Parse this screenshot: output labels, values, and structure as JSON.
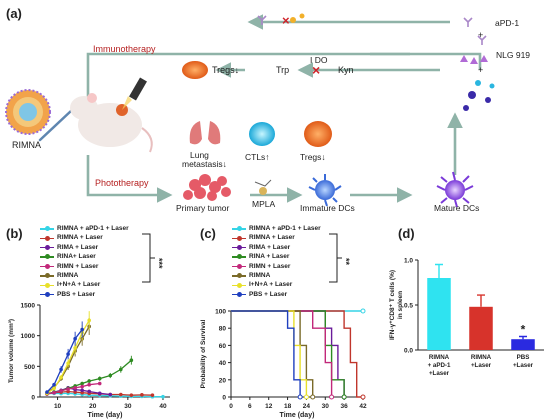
{
  "panel_a": {
    "letter": "(a)",
    "labels": {
      "immunotherapy": "Immunotherapy",
      "phototherapy": "Phototherapy",
      "rimna": "RIMNA",
      "apd1": "aPD-1",
      "plus1": "+",
      "nlg": "NLG 919",
      "plus2": "+",
      "tregs_down": "Tregs↓",
      "trp": "Trp",
      "ido": "I DO",
      "kyn": "Kyn",
      "lung": "Lung",
      "metastasis": "metastasis↓",
      "ctls": "CTLs↑",
      "tregs2": "Tregs↓",
      "primary_tumor": "Primary tumor",
      "mpla": "MPLA",
      "immature_dcs": "Immature DCs",
      "mature_dcs": "Mature DCs"
    },
    "colors": {
      "arrow": "#8fb3a8",
      "red": "#b51f1f"
    }
  },
  "chart_data": [
    {
      "panel": "(b)",
      "type": "line",
      "ylabel": "Tumor volume (mm³)",
      "xlabel": "Time (day)",
      "xlim": [
        5,
        42
      ],
      "ylim": [
        0,
        1500
      ],
      "xticks": [
        10,
        20,
        30,
        40
      ],
      "yticks": [
        0,
        500,
        1000,
        1500
      ],
      "significance": "***",
      "series": [
        {
          "name": "RIMNA + aPD-1 + Laser",
          "color": "#35d4e6",
          "x": [
            7,
            9,
            11,
            13,
            15,
            17,
            19,
            22,
            25,
            28,
            31,
            34,
            37,
            40
          ],
          "y": [
            50,
            60,
            55,
            60,
            50,
            40,
            30,
            25,
            20,
            15,
            10,
            10,
            5,
            5
          ]
        },
        {
          "name": "RIMNA + Laser",
          "color": "#c0362c",
          "x": [
            7,
            9,
            11,
            13,
            15,
            17,
            19,
            22,
            25,
            28,
            31,
            34,
            37
          ],
          "y": [
            50,
            70,
            80,
            90,
            80,
            70,
            60,
            50,
            40,
            40,
            30,
            35,
            30
          ]
        },
        {
          "name": "RIMA + Laser",
          "color": "#6a1b9a",
          "x": [
            7,
            9,
            11,
            13,
            15,
            17,
            19,
            22,
            25
          ],
          "y": [
            50,
            80,
            110,
            150,
            120,
            110,
            90,
            60,
            40
          ]
        },
        {
          "name": "RINA+ Laser",
          "color": "#2e8b22",
          "x": [
            7,
            9,
            11,
            13,
            15,
            17,
            19,
            22,
            25,
            28,
            31
          ],
          "y": [
            50,
            80,
            100,
            140,
            180,
            220,
            260,
            300,
            350,
            450,
            600
          ]
        },
        {
          "name": "RIMN + Laser",
          "color": "#c2287a",
          "x": [
            7,
            9,
            11,
            13,
            15,
            17,
            19,
            22
          ],
          "y": [
            50,
            70,
            100,
            130,
            150,
            170,
            200,
            220
          ]
        },
        {
          "name": "RIMNA",
          "color": "#7a6a28",
          "x": [
            7,
            9,
            11,
            13,
            15,
            17,
            19
          ],
          "y": [
            70,
            150,
            300,
            500,
            750,
            950,
            1150
          ]
        },
        {
          "name": "I+N+A + Laser",
          "color": "#e8e02a",
          "x": [
            7,
            9,
            11,
            13,
            15,
            17,
            19
          ],
          "y": [
            60,
            140,
            320,
            550,
            800,
            1050,
            1250
          ]
        },
        {
          "name": "PBS + Laser",
          "color": "#1f3fbf",
          "x": [
            7,
            9,
            11,
            13,
            15,
            17
          ],
          "y": [
            80,
            200,
            450,
            700,
            950,
            1100
          ]
        }
      ]
    },
    {
      "panel": "(c)",
      "type": "line",
      "ylabel": "Probability of Survival",
      "xlabel": "Time (day)",
      "xlim": [
        0,
        42
      ],
      "ylim": [
        0,
        100
      ],
      "xticks": [
        0,
        6,
        12,
        18,
        24,
        30,
        36,
        42
      ],
      "yticks": [
        0,
        20,
        40,
        60,
        80,
        100
      ],
      "significance": "**",
      "series": [
        {
          "name": "RIMNA + aPD-1 + Laser",
          "color": "#35d4e6",
          "x": [
            0,
            42
          ],
          "y": [
            100,
            100
          ]
        },
        {
          "name": "RIMNA + Laser",
          "color": "#c0362c",
          "x": [
            0,
            36,
            36,
            38,
            38,
            40,
            40,
            42
          ],
          "y": [
            100,
            100,
            80,
            80,
            40,
            40,
            0,
            0
          ]
        },
        {
          "name": "RIMA + Laser",
          "color": "#6a1b9a",
          "x": [
            0,
            30,
            30,
            32,
            32,
            34,
            34,
            36,
            36
          ],
          "y": [
            100,
            100,
            80,
            80,
            60,
            60,
            20,
            20,
            0
          ]
        },
        {
          "name": "RINA + Laser",
          "color": "#2e8b22",
          "x": [
            0,
            30,
            30,
            32,
            32,
            36,
            36
          ],
          "y": [
            100,
            100,
            60,
            60,
            20,
            20,
            0
          ]
        },
        {
          "name": "RIMN + Laser",
          "color": "#c2287a",
          "x": [
            0,
            26,
            26,
            30,
            30,
            32,
            32
          ],
          "y": [
            100,
            100,
            80,
            80,
            40,
            40,
            0
          ]
        },
        {
          "name": "RIMNA",
          "color": "#7a6a28",
          "x": [
            0,
            22,
            22,
            24,
            24,
            26,
            26
          ],
          "y": [
            100,
            100,
            60,
            60,
            20,
            20,
            0
          ]
        },
        {
          "name": "I+N+A + Laser",
          "color": "#e8e02a",
          "x": [
            0,
            20,
            20,
            22,
            22,
            24,
            24
          ],
          "y": [
            100,
            100,
            60,
            60,
            20,
            20,
            0
          ]
        },
        {
          "name": "PBS + Laser",
          "color": "#1f3fbf",
          "x": [
            0,
            18,
            18,
            20,
            20,
            22,
            22
          ],
          "y": [
            100,
            100,
            80,
            80,
            20,
            20,
            0
          ]
        }
      ]
    },
    {
      "panel": "(d)",
      "type": "bar",
      "ylabel": "IFN-γ⁺CD8⁺ T cells (%) in spleen",
      "categories": [
        "RIMNA + aPD-1 +Laser",
        "RIMNA +Laser",
        "PBS +Laser"
      ],
      "values": [
        0.8,
        0.48,
        0.12
      ],
      "errors": [
        0.15,
        0.13,
        0.03
      ],
      "colors": [
        "#2fe3f0",
        "#d7332b",
        "#2a2ae0"
      ],
      "ylim": [
        0,
        1.0
      ],
      "yticks": [
        0.0,
        0.5,
        1.0
      ],
      "significance": "*"
    }
  ]
}
